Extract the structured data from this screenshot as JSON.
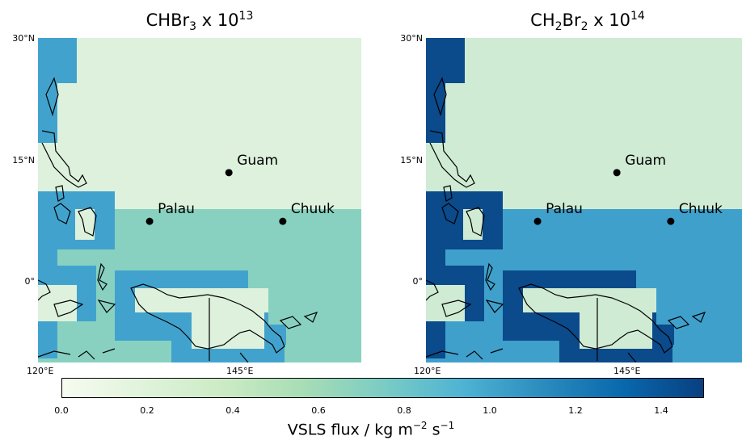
{
  "left_panel": {
    "title": "CHBr",
    "title_sub": "3",
    "title_suffix": " x 10",
    "title_exp": "13"
  },
  "right_panel": {
    "title": "CH",
    "title_sub": "2",
    "title_mid": "Br",
    "title_sub2": "2",
    "title_suffix": " x 10",
    "title_exp": "14"
  },
  "lat_labels": [
    "30°N",
    "15°N",
    "0°"
  ],
  "lon_labels": [
    "120°E",
    "145°E"
  ],
  "places": [
    {
      "name": "Guam",
      "lon": 144.8,
      "lat": 13.4
    },
    {
      "name": "Palau",
      "lon": 134.5,
      "lat": 7.4
    },
    {
      "name": "Chuuk",
      "lon": 151.8,
      "lat": 7.4
    }
  ],
  "extent": {
    "lon": [
      120,
      162
    ],
    "lat": [
      -10,
      30
    ]
  },
  "colorbar": {
    "ticks": [
      "0.0",
      "0.2",
      "0.4",
      "0.6",
      "0.8",
      "1.0",
      "1.2",
      "1.4"
    ],
    "range": [
      0,
      1.5
    ],
    "label": "VSLS flux / kg m",
    "label_exp": "−2",
    "label_mid": " s",
    "label_exp2": "−1",
    "colors": [
      "#f7fcf0",
      "#e0f3db",
      "#ccebc5",
      "#a8ddb5",
      "#7bccc4",
      "#4eb3d3",
      "#2b8cbe",
      "#0868ac",
      "#084081"
    ]
  },
  "map_colors": {
    "left": {
      "low": "#ddf1dc",
      "mid": "#88d1c0",
      "high": "#41a3cd"
    },
    "right": {
      "low": "#cfebd3",
      "mid": "#3fa0cc",
      "high": "#0b4a8b"
    }
  }
}
